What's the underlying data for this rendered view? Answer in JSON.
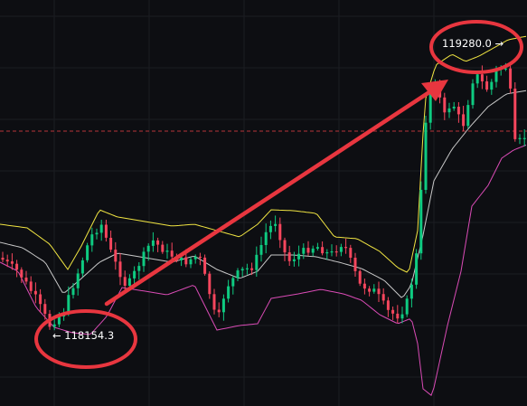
{
  "chart_data": {
    "type": "candlestick",
    "indicator": "bollinger_bands",
    "colors": {
      "background": "#0d0e12",
      "grid": "#1b1d22",
      "candle_up": "#0ecb81",
      "candle_down": "#f6465d",
      "band_upper": "#f0e442",
      "band_middle": "#c8c8c8",
      "band_lower": "#d94bb5",
      "reference_line": "#b8343a",
      "annotation": "#e8363f"
    },
    "annotations": {
      "low_price": "118154.3",
      "high_price": "119280.0",
      "low_arrow": "←",
      "high_arrow": "→"
    }
  }
}
